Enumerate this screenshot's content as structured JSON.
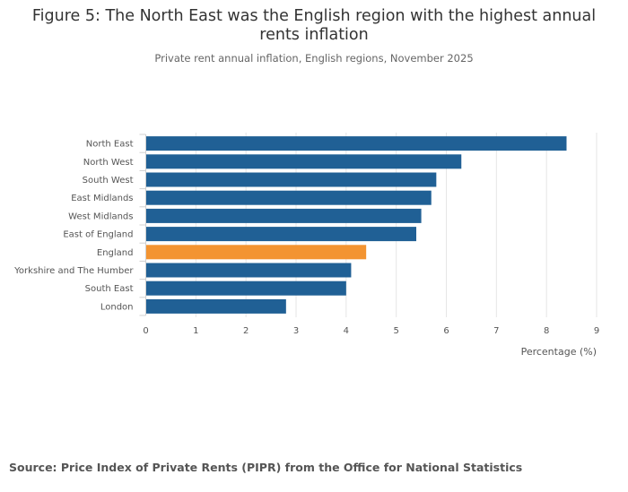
{
  "chart_data": {
    "type": "bar",
    "orientation": "horizontal",
    "title_line1": "Figure 5: The North East was the English region with the highest annual",
    "title_line2": "rents inflation",
    "subtitle": "Private rent annual inflation, English regions, November 2025",
    "xlabel": "Percentage (%)",
    "ylabel": "",
    "xlim": [
      0,
      9
    ],
    "x_ticks": [
      "0",
      "1",
      "2",
      "3",
      "4",
      "5",
      "6",
      "7",
      "8",
      "9"
    ],
    "grid": "vertical",
    "categories": [
      "North East",
      "North West",
      "South West",
      "East Midlands",
      "West Midlands",
      "East of England",
      "England",
      "Yorkshire and The Humber",
      "South East",
      "London"
    ],
    "values": [
      8.4,
      6.3,
      5.8,
      5.7,
      5.5,
      5.4,
      4.4,
      4.1,
      4.0,
      2.8
    ],
    "bar_colors": [
      "#206095",
      "#206095",
      "#206095",
      "#206095",
      "#206095",
      "#206095",
      "#F39431",
      "#206095",
      "#206095",
      "#206095"
    ],
    "default_color": "#206095",
    "highlight_color": "#F39431"
  },
  "source": "Source: Price Index of Private Rents (PIPR) from the Office for National Statistics"
}
